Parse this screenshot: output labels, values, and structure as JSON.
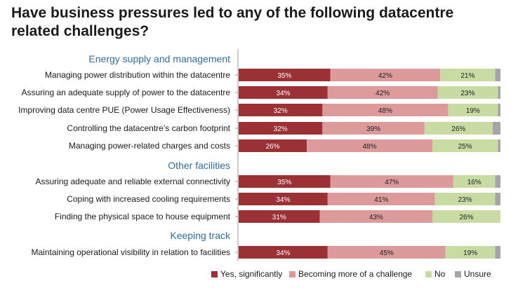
{
  "chart_data": {
    "type": "bar",
    "orientation": "horizontal",
    "stacked": true,
    "percent": true,
    "title": "Have business pressures led to any of the following datacentre related challenges?",
    "xlim": [
      0,
      100
    ],
    "legend_position": "bottom-right",
    "groups": [
      {
        "name": "Energy supply and management",
        "categories": [
          "Managing power distribution within the datacentre",
          "Assuring an adequate supply of power to the datacentre",
          "Improving data centre PUE (Power Usage Effectiveness)",
          "Controlling the datacentre’s carbon footprint",
          "Managing power-related charges and costs"
        ]
      },
      {
        "name": "Other facilities",
        "categories": [
          "Assuring adequate and reliable external connectivity",
          "Coping with increased cooling requirements",
          "Finding the physical space to house equipment"
        ]
      },
      {
        "name": "Keeping track",
        "categories": [
          "Maintaining operational visibility in relation to facilities"
        ]
      }
    ],
    "series": [
      {
        "name": "Yes, significantly",
        "color": "#9b3035",
        "values": [
          35,
          34,
          32,
          32,
          26,
          35,
          34,
          31,
          34
        ]
      },
      {
        "name": "Becoming more of a challenge",
        "color": "#dc9a9b",
        "values": [
          42,
          42,
          48,
          39,
          48,
          47,
          41,
          43,
          45
        ]
      },
      {
        "name": "No",
        "color": "#c8dba3",
        "values": [
          21,
          23,
          19,
          26,
          25,
          16,
          23,
          26,
          19
        ]
      },
      {
        "name": "Unsure",
        "color": "#a5a5a5",
        "values": [
          2,
          1,
          1,
          3,
          1,
          2,
          2,
          0,
          2
        ]
      }
    ],
    "value_labels": [
      [
        "35%",
        "34%",
        "32%",
        "32%",
        "26%",
        "35%",
        "34%",
        "31%",
        "34%"
      ],
      [
        "42%",
        "42%",
        "48%",
        "39%",
        "48%",
        "47%",
        "41%",
        "43%",
        "45%"
      ],
      [
        "21%",
        "23%",
        "19%",
        "26%",
        "25%",
        "16%",
        "23%",
        "26%",
        "19%"
      ],
      [
        "",
        "",
        "",
        "",
        "",
        "",
        "",
        "",
        ""
      ]
    ]
  }
}
